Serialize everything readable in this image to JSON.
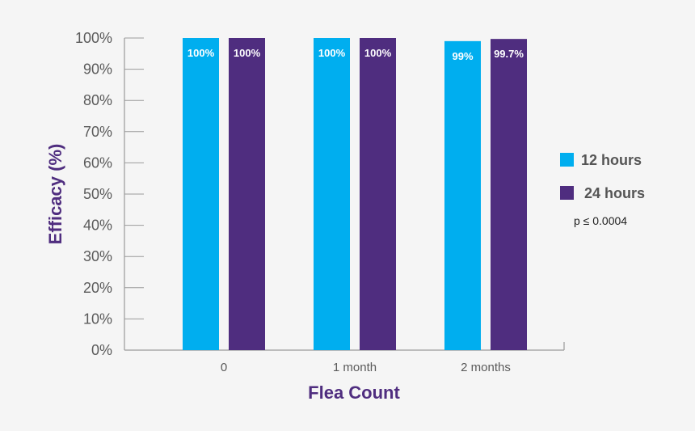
{
  "chart_data": {
    "type": "bar",
    "categories": [
      "0",
      "1 month",
      "2 months"
    ],
    "series": [
      {
        "name": "12 hours",
        "values": [
          100,
          100,
          99
        ],
        "labels": [
          "100%",
          "100%",
          "99%"
        ],
        "color": "#00aeef"
      },
      {
        "name": "24 hours",
        "values": [
          100,
          100,
          99.7
        ],
        "labels": [
          "100%",
          "100%",
          "99.7%"
        ],
        "color": "#4f2d7f"
      }
    ],
    "xlabel": "Flea Count",
    "ylabel": "Efficacy (%)",
    "ylim": [
      0,
      100
    ],
    "yticks": [
      0,
      10,
      20,
      30,
      40,
      50,
      60,
      70,
      80,
      90,
      100
    ],
    "ytick_labels": [
      "0%",
      "10%",
      "20%",
      "30%",
      "40%",
      "50%",
      "60%",
      "70%",
      "80%",
      "90%",
      "100%"
    ],
    "grid": false,
    "legend_position": "right",
    "annotation": "p ≤ 0.0004",
    "title_color": "#4f2d7f",
    "axis_color": "#9a9a9a"
  }
}
